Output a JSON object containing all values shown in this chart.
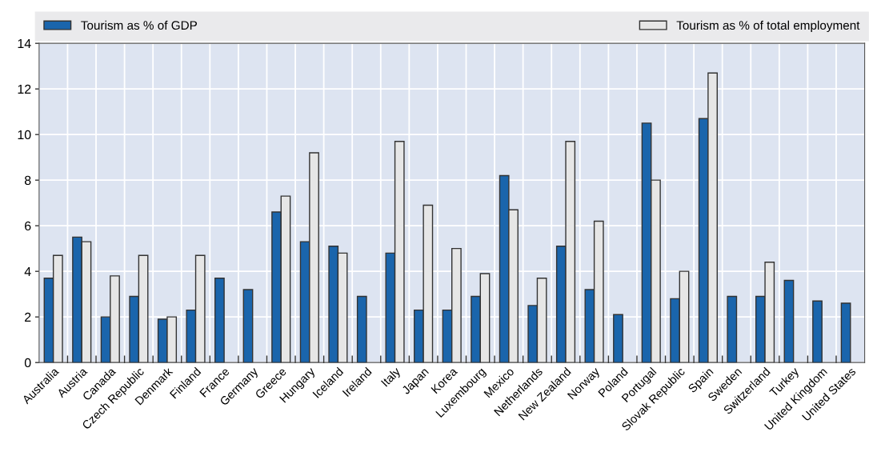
{
  "chart_data": {
    "type": "bar",
    "categories": [
      "Australia",
      "Austria",
      "Canada",
      "Czech Republic",
      "Denmark",
      "Finland",
      "France",
      "Germany",
      "Greece",
      "Hungary",
      "Iceland",
      "Ireland",
      "Italy",
      "Japan",
      "Korea",
      "Luxembourg",
      "Mexico",
      "Netherlands",
      "New Zealand",
      "Norway",
      "Poland",
      "Portugal",
      "Slovak Republic",
      "Spain",
      "Sweden",
      "Switzerland",
      "Turkey",
      "United Kingdom",
      "United States"
    ],
    "series": [
      {
        "name": "Tourism as % of GDP",
        "color": "#1a65ac",
        "values": [
          3.7,
          5.5,
          2.0,
          2.9,
          1.9,
          2.3,
          3.7,
          3.2,
          6.6,
          5.3,
          5.1,
          2.9,
          4.8,
          2.3,
          2.3,
          2.9,
          8.2,
          2.5,
          5.1,
          3.2,
          2.1,
          10.5,
          2.8,
          10.7,
          2.9,
          2.9,
          3.6,
          2.7,
          2.6
        ]
      },
      {
        "name": "Tourism as % of total employment",
        "color": "#e6e6e6",
        "values": [
          4.7,
          5.3,
          3.8,
          4.7,
          2.0,
          4.7,
          null,
          null,
          7.3,
          9.2,
          4.8,
          null,
          9.7,
          6.9,
          5.0,
          3.9,
          6.7,
          3.7,
          9.7,
          6.2,
          null,
          8.0,
          4.0,
          12.7,
          null,
          4.4,
          null,
          null,
          null
        ]
      }
    ],
    "ylim": [
      0,
      14
    ],
    "yticks": [
      0,
      2,
      4,
      6,
      8,
      10,
      12,
      14
    ],
    "grid": true,
    "legend": "top"
  }
}
